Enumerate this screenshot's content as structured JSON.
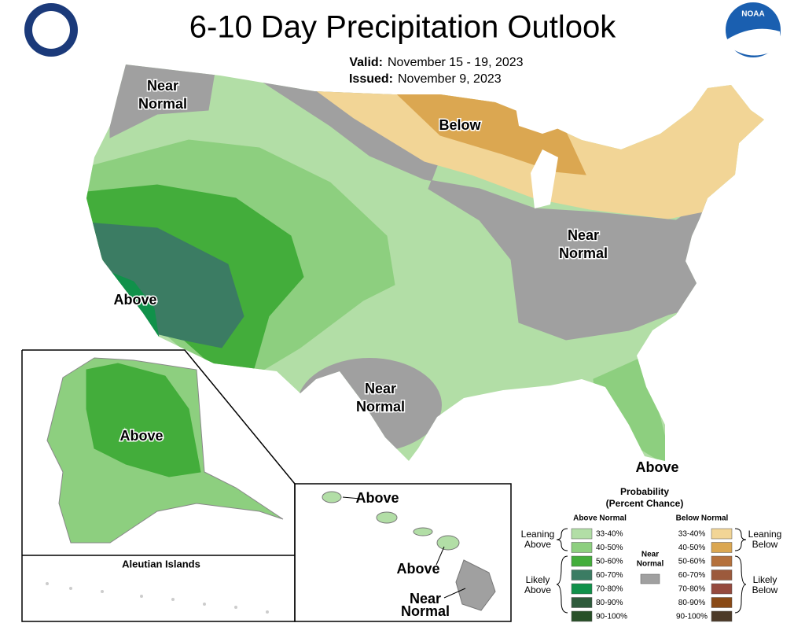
{
  "header": {
    "title": "6-10 Day Precipitation Outlook",
    "valid_label": "Valid:",
    "valid": "November 15 - 19, 2023",
    "issued_label": "Issued:",
    "issued": "November 9, 2023",
    "logo": "NOAA"
  },
  "map_labels": [
    {
      "lines": [
        "Near",
        "Normal"
      ]
    },
    {
      "lines": [
        "Below"
      ]
    },
    {
      "lines": [
        "Near",
        "Normal"
      ]
    },
    {
      "lines": [
        "Near",
        "Normal"
      ]
    },
    {
      "lines": [
        "Above"
      ]
    },
    {
      "lines": [
        "Above"
      ]
    }
  ],
  "alaska": {
    "label": "Above",
    "aleutian_title": "Aleutian Islands"
  },
  "hawaii_labels": [
    {
      "lines": [
        "Above"
      ]
    },
    {
      "lines": [
        "Above"
      ]
    },
    {
      "lines": [
        "Near",
        "Normal"
      ]
    }
  ],
  "legend": {
    "title": "Probability",
    "subtitle": "(Percent Chance)",
    "above_heading": "Above Normal",
    "below_heading": "Below Normal",
    "near": {
      "lines": [
        "Near",
        "Normal"
      ],
      "color": "#a0a0a0"
    },
    "above_groups": [
      [
        "Leaning",
        "Above"
      ],
      [
        "Likely",
        "Above"
      ]
    ],
    "below_groups": [
      [
        "Leaning",
        "Below"
      ],
      [
        "Likely",
        "Below"
      ]
    ],
    "above_bins": [
      {
        "label": "33-40%",
        "color": "#b2dea6"
      },
      {
        "label": "40-50%",
        "color": "#8dcf7f"
      },
      {
        "label": "50-60%",
        "color": "#43ad3b"
      },
      {
        "label": "60-70%",
        "color": "#3b7c63"
      },
      {
        "label": "70-80%",
        "color": "#10914a"
      },
      {
        "label": "80-90%",
        "color": "#2e5b3b"
      },
      {
        "label": "90-100%",
        "color": "#285028"
      }
    ],
    "below_bins": [
      {
        "label": "33-40%",
        "color": "#f2d596"
      },
      {
        "label": "40-50%",
        "color": "#dba751"
      },
      {
        "label": "50-60%",
        "color": "#b5713c"
      },
      {
        "label": "60-70%",
        "color": "#9c5a3c"
      },
      {
        "label": "70-80%",
        "color": "#954a3e"
      },
      {
        "label": "80-90%",
        "color": "#8a4a16"
      },
      {
        "label": "90-100%",
        "color": "#4c3a28"
      }
    ]
  }
}
